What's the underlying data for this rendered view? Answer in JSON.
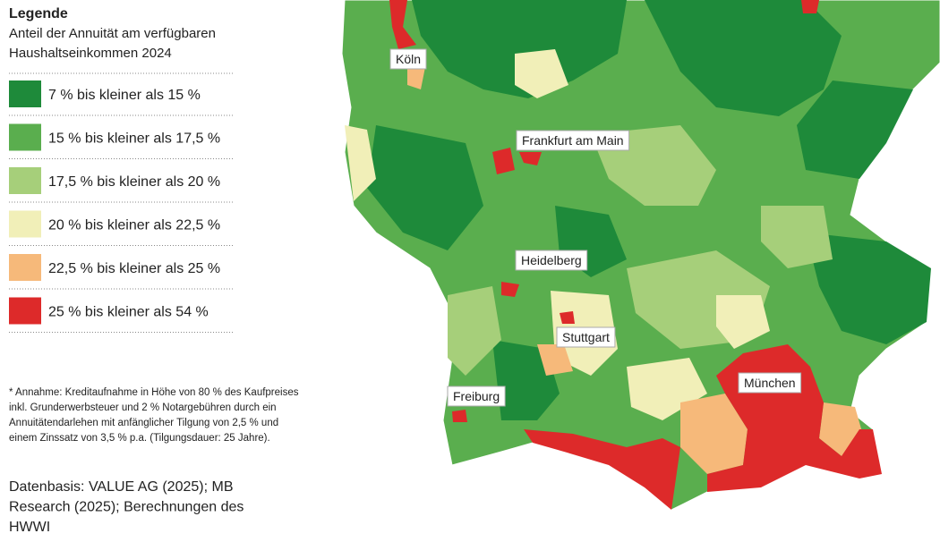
{
  "legend": {
    "title": "Legende",
    "subtitle_lines": [
      "Anteil der Annuität am verfügbaren",
      "Haushaltseinkommen 2024"
    ],
    "items": [
      {
        "label": "7 % bis kleiner als 15 %",
        "color": "#1e8a3a"
      },
      {
        "label": "15 % bis kleiner als 17,5 %",
        "color": "#5aae4e"
      },
      {
        "label": "17,5 % bis kleiner als 20 %",
        "color": "#a6cf7a"
      },
      {
        "label": "20 % bis kleiner als 22,5 %",
        "color": "#f1efb8"
      },
      {
        "label": "22,5 % bis kleiner als 25 %",
        "color": "#f6b97a"
      },
      {
        "label": "25 % bis kleiner als 54 %",
        "color": "#dd2a2a"
      }
    ]
  },
  "cities": [
    "Köln",
    "Frankfurt am Main",
    "Heidelberg",
    "Stuttgart",
    "Freiburg",
    "München"
  ],
  "footnote_lines": [
    "* Annahme: Kreditaufnahme in Höhe von 80 % des Kaufpreises",
    "inkl. Grunderwerbsteuer und 2 % Notargebühren durch ein",
    "Annuitätendarlehen mit anfänglicher Tilgung von 2,5 % und",
    "einem Zinssatz von 3,5 % p.a. (Tilgungsdauer: 25 Jahre)."
  ],
  "source_lines": [
    "Datenbasis: VALUE AG (2025); MB",
    "Research (2025); Berechnungen des",
    "HWWI"
  ]
}
